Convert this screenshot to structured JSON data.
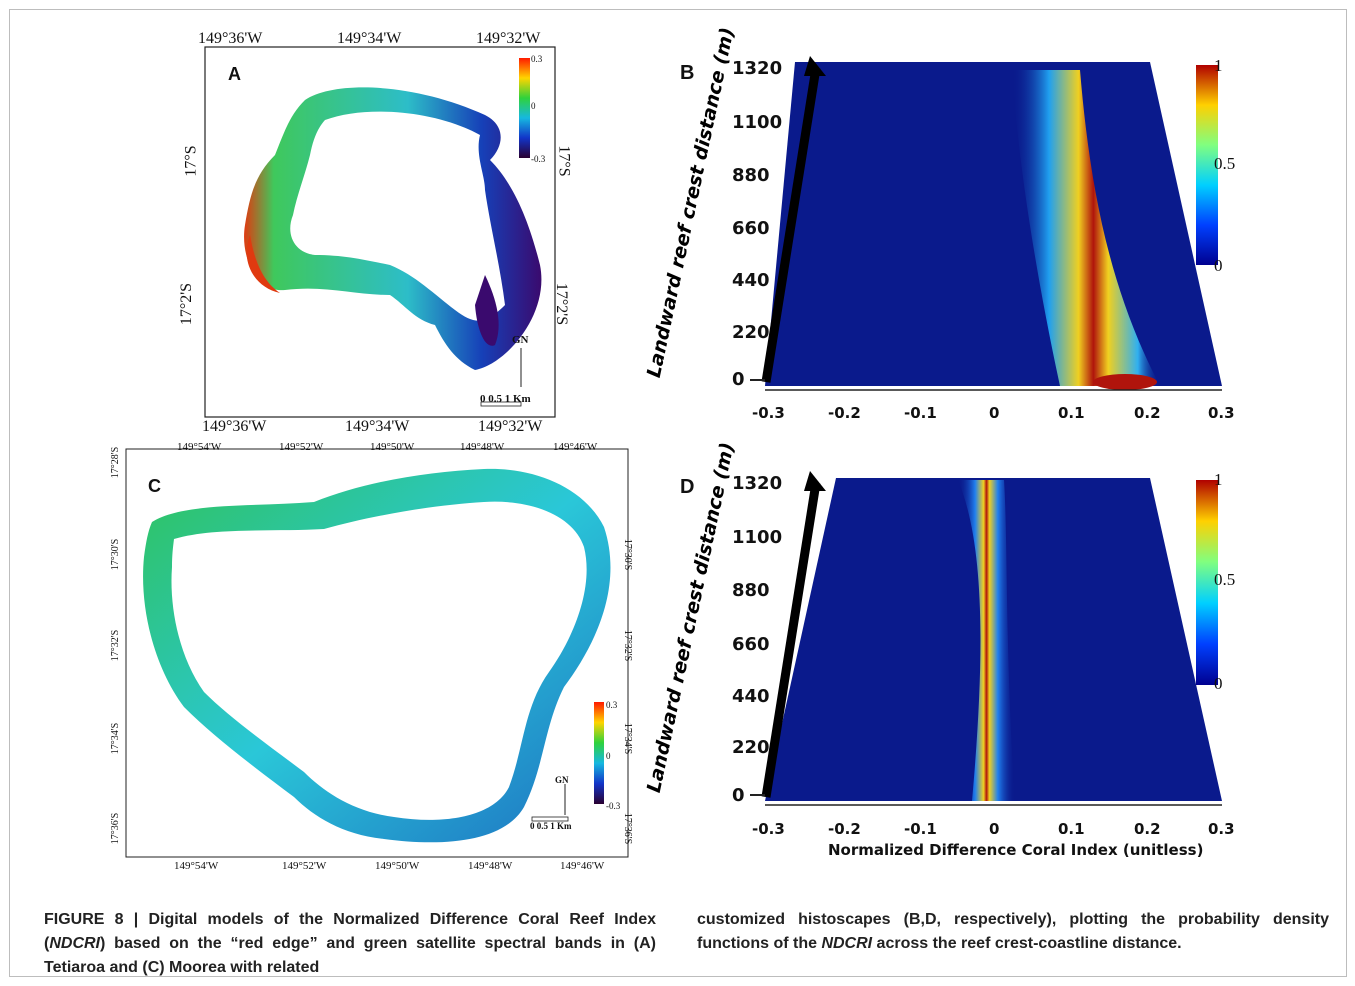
{
  "panel_a": {
    "letter": "A",
    "top_ticks": [
      "149°36'W",
      "149°34'W",
      "149°32'W"
    ],
    "bottom_ticks": [
      "149°36'W",
      "149°34'W",
      "149°32'W"
    ],
    "left_ticks": [
      "17°S",
      "17°2'S"
    ],
    "right_ticks": [
      "17°S",
      "17°2'S"
    ],
    "scale_labels": [
      "0.3",
      "0",
      "-0.3"
    ],
    "north_label": "GN",
    "scalebar_label": "0 0.5 1 Km"
  },
  "panel_c": {
    "letter": "C",
    "top_ticks": [
      "149°54'W",
      "149°52'W",
      "149°50'W",
      "149°48'W",
      "149°46'W"
    ],
    "bottom_ticks": [
      "149°54'W",
      "149°52'W",
      "149°50'W",
      "149°48'W",
      "149°46'W"
    ],
    "left_ticks": [
      "17°28'S",
      "17°30'S",
      "17°32'S",
      "17°34'S",
      "17°36'S"
    ],
    "right_ticks": [
      "17°30'S",
      "17°32'S",
      "17°34'S",
      "17°36'S"
    ],
    "scale_labels": [
      "0.3",
      "0",
      "-0.3"
    ],
    "north_label": "GN",
    "scalebar_label": "0 0.5 1 Km"
  },
  "panel_b": {
    "letter": "B",
    "y_label": "Landward reef crest distance (m)",
    "x_ticks": [
      "-0.3",
      "-0.2",
      "-0.1",
      "0",
      "0.1",
      "0.2",
      "0.3"
    ],
    "y_ticks": [
      "0",
      "220",
      "440",
      "660",
      "880",
      "1100",
      "1320"
    ],
    "colorbar_ticks": [
      "1",
      "0.5",
      "0"
    ]
  },
  "panel_d": {
    "letter": "D",
    "y_label": "Landward reef crest distance (m)",
    "x_label": "Normalized Difference Coral Index (unitless)",
    "x_ticks": [
      "-0.3",
      "-0.2",
      "-0.1",
      "0",
      "0.1",
      "0.2",
      "0.3"
    ],
    "y_ticks": [
      "0",
      "220",
      "440",
      "660",
      "880",
      "1100",
      "1320"
    ],
    "colorbar_ticks": [
      "1",
      "0.5",
      "0"
    ]
  },
  "caption": {
    "lead": "FIGURE 8 | Digital models of the Normalized Difference Coral Reef Index (",
    "abbr": "NDCRI",
    "left_rest": ") based on the “red edge” and green satellite spectral bands in (A) Tetiaroa and (C) Moorea with related",
    "right_a": "customized histoscapes (B,D, respectively), plotting the probability density functions of the ",
    "right_abbr": "NDCRI",
    "right_b": " across the reef crest-coastline distance."
  },
  "colors": {
    "deep_blue": "#0a1a8c",
    "red_ridge": "#b0140c",
    "reef_green": "#37c06a",
    "reef_cyan": "#2ac7d8"
  }
}
